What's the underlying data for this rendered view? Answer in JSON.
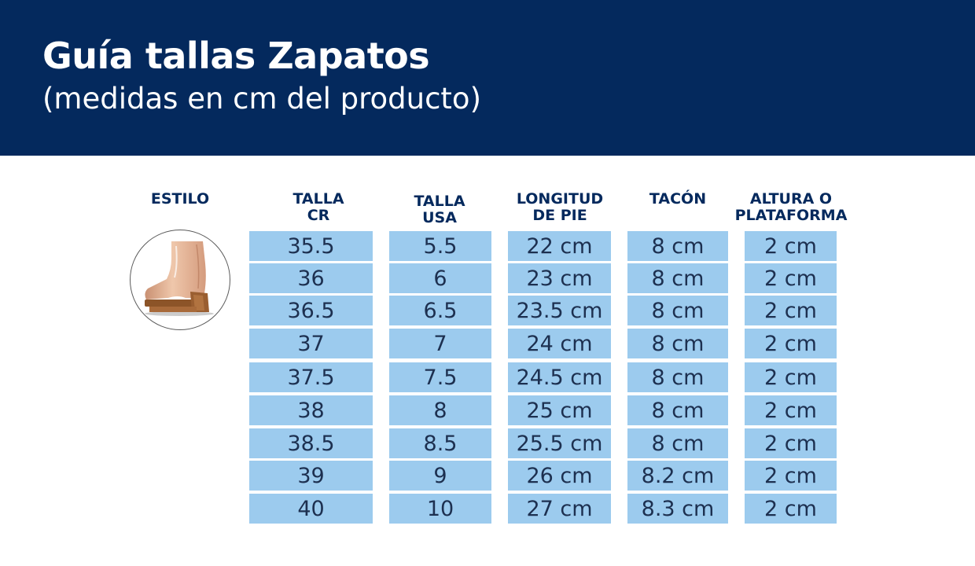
{
  "header": {
    "title": "Guía tallas Zapatos",
    "subtitle": "(medidas en cm del producto)"
  },
  "style_label": "ESTILO",
  "columns": [
    {
      "label": "TALLA\nCR"
    },
    {
      "label": "TALLA\nUSA"
    },
    {
      "label": "LONGITUD\nDE PIE"
    },
    {
      "label": "TACÓN"
    },
    {
      "label": "ALTURA O\nPLATAFORMA"
    }
  ],
  "rows": [
    [
      "35.5",
      "5.5",
      "22 cm",
      "8 cm",
      "2 cm"
    ],
    [
      "36",
      "6",
      "23 cm",
      "8 cm",
      "2 cm"
    ],
    [
      "36.5",
      "6.5",
      "23.5 cm",
      "8 cm",
      "2 cm"
    ],
    [
      "37",
      "7",
      "24 cm",
      "8 cm",
      "2 cm"
    ],
    [
      "37.5",
      "7.5",
      "24.5 cm",
      "8 cm",
      "2 cm"
    ],
    [
      "38",
      "8",
      "25 cm",
      "8 cm",
      "2 cm"
    ],
    [
      "38.5",
      "8.5",
      "25.5 cm",
      "8 cm",
      "2 cm"
    ],
    [
      "39",
      "9",
      "26 cm",
      "8.2 cm",
      "2 cm"
    ],
    [
      "40",
      "10",
      "27 cm",
      "8.3 cm",
      "2 cm"
    ]
  ],
  "colors": {
    "header_bg": "#04295d",
    "cell_bg": "#9ccbee",
    "cell_text": "#1d3050",
    "heading_text": "#04295d"
  },
  "icons": {
    "style_image": "ankle-boot-icon"
  }
}
